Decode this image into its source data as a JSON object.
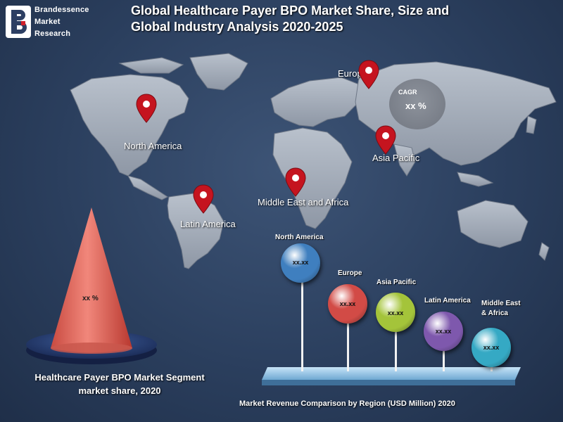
{
  "logo": {
    "line1": "Brandessence",
    "line2": "Market",
    "line3": "Research"
  },
  "title": {
    "line1": "Global Healthcare Payer BPO Market Share, Size and",
    "line2": "Global Industry Analysis 2020-2025"
  },
  "map": {
    "regions": {
      "north_america": "North America",
      "europe": "Europe",
      "asia_pacific": "Asia Pacific",
      "middle_east_africa": "Middle East and Africa",
      "latin_america": "Latin America"
    },
    "cagr": {
      "label": "CAGR",
      "value": "xx %"
    }
  },
  "cone": {
    "value": "xx %",
    "caption_line1": "Healthcare Payer BPO  Market Segment",
    "caption_line2": "market share, 2020"
  },
  "bubbles": {
    "caption": "Market Revenue Comparison by Region (USD Million) 2020",
    "items": [
      {
        "name": "North America",
        "value": "xx.xx",
        "color": "#3f7fbf"
      },
      {
        "name": "Europe",
        "value": "xx.xx",
        "color": "#d24b46"
      },
      {
        "name": "Asia Pacific",
        "value": "xx.xx",
        "color": "#a4c43a"
      },
      {
        "name": "Latin America",
        "value": "xx.xx",
        "color": "#7e58ad"
      },
      {
        "name_line1": "Middle East",
        "name_line2": "& Africa",
        "value": "xx.xx",
        "color": "#35a9c4"
      }
    ]
  }
}
